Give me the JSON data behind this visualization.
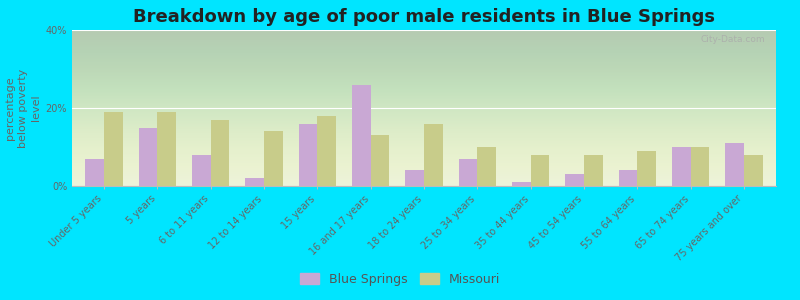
{
  "title": "Breakdown by age of poor male residents in Blue Springs",
  "ylabel": "percentage\nbelow poverty\nlevel",
  "categories": [
    "Under 5 years",
    "5 years",
    "6 to 11 years",
    "12 to 14 years",
    "15 years",
    "16 and 17 years",
    "18 to 24 years",
    "25 to 34 years",
    "35 to 44 years",
    "45 to 54 years",
    "55 to 64 years",
    "65 to 74 years",
    "75 years and over"
  ],
  "blue_springs": [
    7,
    15,
    8,
    2,
    16,
    26,
    4,
    7,
    1,
    3,
    4,
    10,
    11
  ],
  "missouri": [
    19,
    19,
    17,
    14,
    18,
    13,
    16,
    10,
    8,
    8,
    9,
    10,
    8
  ],
  "ylim": [
    0,
    40
  ],
  "yticks": [
    0,
    20,
    40
  ],
  "ytick_labels": [
    "0%",
    "20%",
    "40%"
  ],
  "bar_color_bs": "#c9a8d4",
  "bar_color_mo": "#c8cc8a",
  "bg_plot_color": "#e8f0d8",
  "bg_outer": "#00e5ff",
  "legend_bs": "Blue Springs",
  "legend_mo": "Missouri",
  "title_fontsize": 13,
  "axis_label_fontsize": 8,
  "tick_label_fontsize": 7,
  "bar_width": 0.35,
  "watermark": "City-Data.com"
}
